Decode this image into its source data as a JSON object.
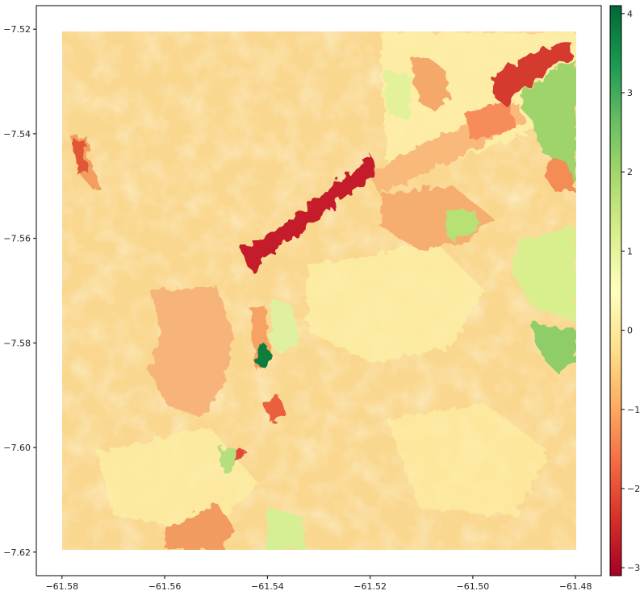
{
  "map": {
    "x_axis": {
      "ticks": [
        -61.58,
        -61.56,
        -61.54,
        -61.52,
        -61.5,
        -61.48
      ],
      "tick_labels": [
        "−61.58",
        "−61.56",
        "−61.54",
        "−61.52",
        "−61.50",
        "−61.48"
      ],
      "range": [
        -61.585,
        -61.475
      ]
    },
    "y_axis": {
      "ticks": [
        -7.52,
        -7.54,
        -7.56,
        -7.58,
        -7.6,
        -7.62
      ],
      "tick_labels": [
        "−7.52",
        "−7.54",
        "−7.56",
        "−7.58",
        "−7.60",
        "−7.62"
      ],
      "range": [
        -7.6245,
        -7.5155
      ]
    },
    "raster_extent": {
      "lon": [
        -61.58,
        -61.48
      ],
      "lat": [
        -7.62,
        -7.52
      ]
    },
    "colorbar": {
      "colormap": "RdYlGn",
      "range": [
        -3.1,
        4.1
      ],
      "ticks": [
        4,
        3,
        2,
        1,
        0,
        -1,
        -2,
        -3
      ],
      "tick_labels": [
        "4",
        "3",
        "2",
        "1",
        "0",
        "−1",
        "−2",
        "−3"
      ],
      "colors": [
        "#a50026",
        "#d73027",
        "#f46d43",
        "#fdae61",
        "#fee08b",
        "#ffffbf",
        "#d9ef8b",
        "#a6d96a",
        "#66bd63",
        "#1a9850",
        "#006837"
      ]
    },
    "background_color": "#f9d78f"
  }
}
